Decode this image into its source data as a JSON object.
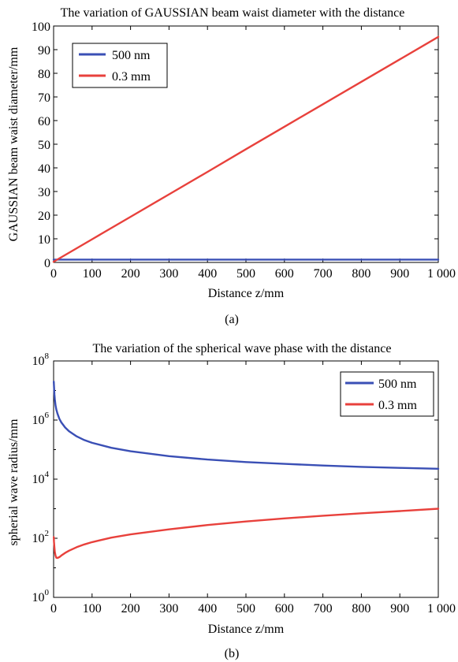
{
  "chart_data": [
    {
      "type": "line",
      "title": "The variation of GAUSSIAN beam waist diameter with the distance",
      "xlabel": "Distance z/mm",
      "ylabel": "GAUSSIAN beam waist diameter/mm",
      "caption": "(a)",
      "xlim": [
        0,
        1000
      ],
      "ylim": [
        0,
        100
      ],
      "xticks": [
        0,
        100,
        200,
        300,
        400,
        500,
        600,
        700,
        800,
        900,
        1000
      ],
      "xtick_labels": [
        "0",
        "100",
        "200",
        "300",
        "400",
        "500",
        "600",
        "700",
        "800",
        "900",
        "1 000"
      ],
      "yticks": [
        0,
        10,
        20,
        30,
        40,
        50,
        60,
        70,
        80,
        90,
        100
      ],
      "ytick_labels": [
        "0",
        "10",
        "20",
        "30",
        "40",
        "50",
        "60",
        "70",
        "80",
        "90",
        "100"
      ],
      "grid": false,
      "legend_position": "top-left",
      "series": [
        {
          "name": "500 nm",
          "color": "#3a4fb5",
          "x": [
            0,
            100,
            200,
            300,
            400,
            500,
            600,
            700,
            800,
            900,
            1000
          ],
          "y": [
            1.2,
            1.2,
            1.2,
            1.2,
            1.2,
            1.2,
            1.2,
            1.2,
            1.2,
            1.2,
            1.2
          ]
        },
        {
          "name": "0.3 mm",
          "color": "#e8413c",
          "x": [
            0,
            100,
            200,
            300,
            400,
            500,
            600,
            700,
            800,
            900,
            1000
          ],
          "y": [
            0.3,
            9.8,
            19.3,
            28.8,
            38.3,
            47.9,
            57.4,
            66.9,
            76.4,
            85.9,
            95.4
          ]
        }
      ]
    },
    {
      "type": "line",
      "title": "The variation of the spherical wave phase with the distance",
      "xlabel": "Distance z/mm",
      "ylabel": "spherial wave radius/mm",
      "caption": "(b)",
      "xlim": [
        0,
        1000
      ],
      "ylim": [
        1,
        100000000
      ],
      "yscale": "log",
      "xticks": [
        0,
        100,
        200,
        300,
        400,
        500,
        600,
        700,
        800,
        900,
        1000
      ],
      "xtick_labels": [
        "0",
        "100",
        "200",
        "300",
        "400",
        "500",
        "600",
        "700",
        "800",
        "900",
        "1 000"
      ],
      "yticks": [
        1,
        100,
        10000,
        1000000,
        100000000
      ],
      "ytick_bases": [
        "10",
        "10",
        "10",
        "10",
        "10"
      ],
      "ytick_exponents": [
        "0",
        "2",
        "4",
        "6",
        "8"
      ],
      "grid": false,
      "legend_position": "top-right",
      "series": [
        {
          "name": "500 nm",
          "color": "#3a4fb5",
          "x": [
            0.5,
            1,
            2,
            3,
            5,
            7,
            10,
            15,
            20,
            30,
            40,
            60,
            80,
            100,
            150,
            200,
            300,
            400,
            500,
            600,
            700,
            800,
            900,
            1000
          ],
          "y": [
            20000000,
            14000000,
            7500000,
            5200000,
            3200000,
            2300000,
            1650000,
            1100000,
            830000,
            560000,
            420000,
            280000,
            210000,
            170000,
            115000,
            88000,
            60000,
            46000,
            38000,
            33000,
            29000,
            26000,
            24000,
            22500
          ]
        },
        {
          "name": "0.3 mm",
          "color": "#e8413c",
          "x": [
            0.5,
            1,
            2,
            3,
            5,
            7,
            10,
            15,
            20,
            30,
            40,
            60,
            80,
            100,
            150,
            200,
            300,
            400,
            500,
            600,
            700,
            800,
            900,
            1000
          ],
          "y": [
            110,
            75,
            50,
            35,
            26,
            22,
            21.5,
            23,
            26,
            32,
            38,
            50,
            62,
            74,
            105,
            135,
            200,
            280,
            370,
            470,
            580,
            700,
            830,
            1000
          ]
        }
      ]
    }
  ]
}
